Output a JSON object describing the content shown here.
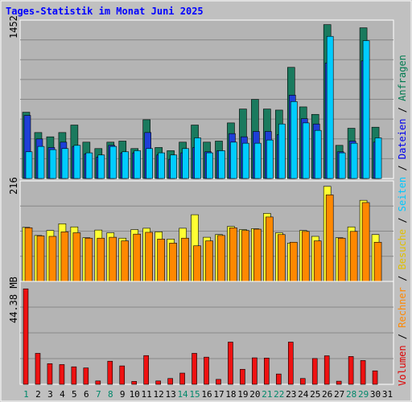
{
  "chart_data": [
    {
      "type": "bar",
      "title": "Tages-Statistik im Monat Juni 2025",
      "panel": "top",
      "ymax_label": "1452",
      "ylim": [
        0,
        1452
      ],
      "categories": [
        "1",
        "2",
        "3",
        "4",
        "5",
        "6",
        "7",
        "8",
        "9",
        "10",
        "11",
        "12",
        "13",
        "14",
        "15",
        "16",
        "17",
        "18",
        "19",
        "20",
        "21",
        "22",
        "23",
        "24",
        "25",
        "26",
        "27",
        "28",
        "29",
        "30",
        "31"
      ],
      "weekend_days": [
        1,
        7,
        8,
        14,
        15,
        21,
        22,
        28,
        29
      ],
      "series": [
        {
          "name": "Anfragen",
          "color": "#1a7a5e",
          "values": [
            620,
            430,
            390,
            430,
            500,
            340,
            280,
            340,
            350,
            280,
            550,
            290,
            260,
            340,
            500,
            340,
            350,
            520,
            650,
            740,
            650,
            640,
            1040,
            670,
            600,
            1440,
            310,
            470,
            1410,
            480,
            0
          ]
        },
        {
          "name": "Dateien",
          "color": "#1e3fd8",
          "values": [
            590,
            370,
            290,
            340,
            300,
            230,
            200,
            310,
            240,
            240,
            430,
            220,
            180,
            240,
            290,
            250,
            260,
            420,
            390,
            440,
            440,
            410,
            780,
            560,
            510,
            1080,
            250,
            350,
            1100,
            340,
            0
          ]
        },
        {
          "name": "Seiten",
          "color": "#00ccff",
          "values": [
            250,
            300,
            270,
            280,
            310,
            240,
            220,
            300,
            250,
            260,
            280,
            240,
            220,
            280,
            380,
            240,
            260,
            340,
            330,
            330,
            360,
            510,
            720,
            520,
            450,
            1330,
            240,
            330,
            1290,
            380,
            0
          ]
        }
      ]
    },
    {
      "type": "bar",
      "panel": "middle",
      "ymax_label": "216",
      "ylim": [
        0,
        216
      ],
      "categories": [
        "1",
        "2",
        "3",
        "4",
        "5",
        "6",
        "7",
        "8",
        "9",
        "10",
        "11",
        "12",
        "13",
        "14",
        "15",
        "16",
        "17",
        "18",
        "19",
        "20",
        "21",
        "22",
        "23",
        "24",
        "25",
        "26",
        "27",
        "28",
        "29",
        "30",
        "31"
      ],
      "series": [
        {
          "name": "Besuche",
          "color": "#ffff33",
          "values": [
            120,
            102,
            113,
            128,
            121,
            97,
            114,
            108,
            96,
            115,
            118,
            110,
            94,
            118,
            148,
            98,
            104,
            122,
            115,
            117,
            151,
            108,
            85,
            113,
            100,
            211,
            97,
            121,
            180,
            104,
            0
          ]
        },
        {
          "name": "Rechner",
          "color": "#ff8800",
          "values": [
            119,
            101,
            100,
            110,
            108,
            96,
            96,
            98,
            90,
            105,
            109,
            94,
            85,
            96,
            79,
            90,
            102,
            119,
            113,
            116,
            143,
            104,
            87,
            111,
            90,
            192,
            96,
            111,
            175,
            87,
            0
          ]
        }
      ]
    },
    {
      "type": "bar",
      "panel": "bottom",
      "ymax_label": "44.38 MB",
      "ylim": [
        0,
        44.38
      ],
      "categories": [
        "1",
        "2",
        "3",
        "4",
        "5",
        "6",
        "7",
        "8",
        "9",
        "10",
        "11",
        "12",
        "13",
        "14",
        "15",
        "16",
        "17",
        "18",
        "19",
        "20",
        "21",
        "22",
        "23",
        "24",
        "25",
        "26",
        "27",
        "28",
        "29",
        "30",
        "31"
      ],
      "series": [
        {
          "name": "Volumen",
          "color": "#ee1111",
          "values": [
            42.5,
            13.8,
            9.2,
            8.8,
            7.8,
            7.3,
            1.5,
            10.3,
            8.2,
            1.3,
            12.8,
            1.5,
            2.6,
            5.0,
            13.8,
            12.1,
            2.2,
            18.8,
            6.7,
            11.8,
            11.7,
            4.6,
            18.8,
            2.6,
            11.5,
            12.7,
            1.4,
            12.4,
            10.6,
            6.0,
            0
          ]
        }
      ]
    }
  ],
  "legend": [
    {
      "text": "Volumen",
      "color": "#dd0000"
    },
    {
      "text": "Rechner",
      "color": "#ff8800"
    },
    {
      "text": "Besuche",
      "color": "#e0c000"
    },
    {
      "text": "Seiten",
      "color": "#00c8ff"
    },
    {
      "text": "Dateien",
      "color": "#0000ee"
    },
    {
      "text": "Anfragen",
      "color": "#007b50"
    }
  ],
  "colors": {
    "background": "#c0c0c0",
    "plot": "#b4b4b4",
    "grid": "#888888",
    "axis_text": "#000000",
    "weekend_text": "#00886a",
    "title": "#0000ff"
  }
}
